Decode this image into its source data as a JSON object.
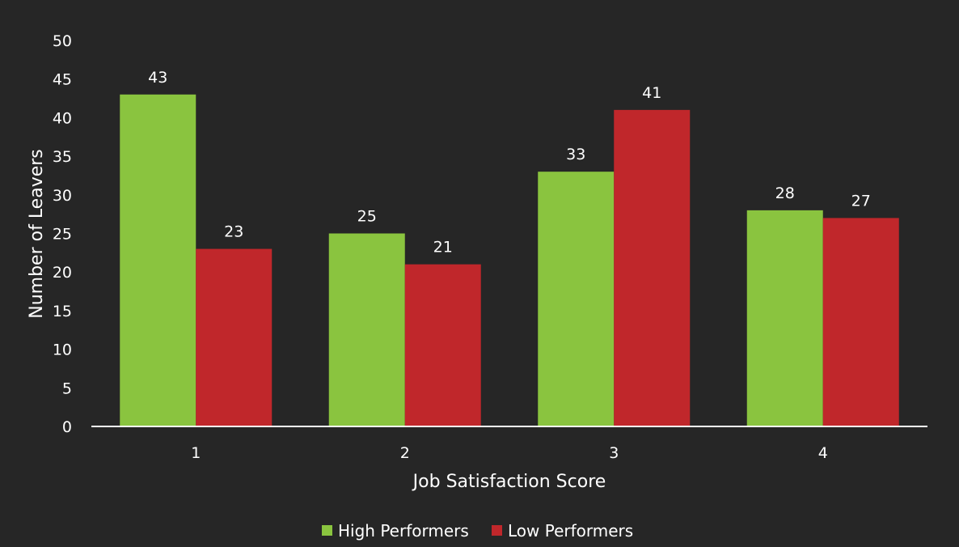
{
  "chart_data": {
    "type": "bar",
    "xlabel": "Job Satisfaction Score",
    "ylabel": "Number of Leavers",
    "categories": [
      "1",
      "2",
      "3",
      "4"
    ],
    "series": [
      {
        "name": "High Performers",
        "color": "#8ac43f",
        "values": [
          43,
          25,
          33,
          28
        ]
      },
      {
        "name": "Low Performers",
        "color": "#c0272b",
        "values": [
          23,
          21,
          41,
          27
        ]
      }
    ],
    "ylim": [
      0,
      50
    ],
    "yticks": [
      0,
      5,
      10,
      15,
      20,
      25,
      30,
      35,
      40,
      45,
      50
    ],
    "grid": false,
    "legend": "bottom",
    "background": "#262626",
    "text_color": "#ffffff"
  }
}
